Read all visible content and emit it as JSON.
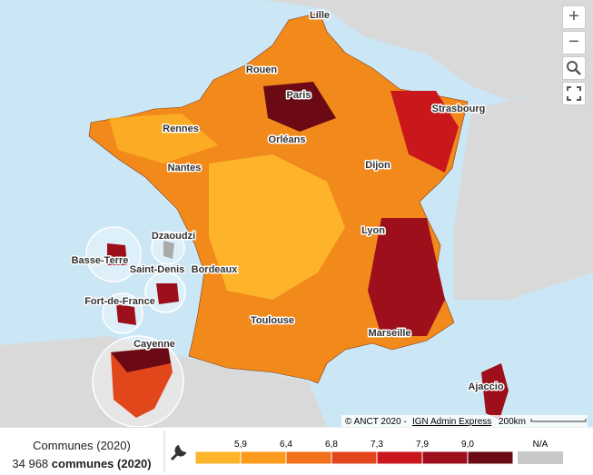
{
  "map": {
    "cities": [
      {
        "label": "Lille"
      },
      {
        "label": "Rouen"
      },
      {
        "label": "Paris"
      },
      {
        "label": "Strasbourg"
      },
      {
        "label": "Rennes"
      },
      {
        "label": "Orléans"
      },
      {
        "label": "Nantes"
      },
      {
        "label": "Dijon"
      },
      {
        "label": "Dzaoudzi"
      },
      {
        "label": "Basse-Terre"
      },
      {
        "label": "Lyon"
      },
      {
        "label": "Saint-Denis"
      },
      {
        "label": "Bordeaux"
      },
      {
        "label": "Fort-de-France"
      },
      {
        "label": "Toulouse"
      },
      {
        "label": "Marseille"
      },
      {
        "label": "Cayenne"
      },
      {
        "label": "Ajaccio"
      }
    ],
    "controls": {
      "zoom_in": "+",
      "zoom_out": "−"
    },
    "attribution": {
      "text": "© ANCT 2020 - ",
      "link": "IGN Admin Express",
      "scale": "200km"
    }
  },
  "panel": {
    "indicator": "Communes (2020)",
    "count": "34 968",
    "count_unit": "communes (2020)"
  },
  "legend": {
    "colors": [
      "#fdb42a",
      "#fb9a1c",
      "#f2701a",
      "#e2461b",
      "#c9171b",
      "#9d0f1b",
      "#6b0a15"
    ],
    "breaks": [
      "5,9",
      "6,4",
      "6,8",
      "7,3",
      "7,9",
      "9,0"
    ],
    "na_label": "N/A",
    "na_color": "#c8c8c8"
  }
}
